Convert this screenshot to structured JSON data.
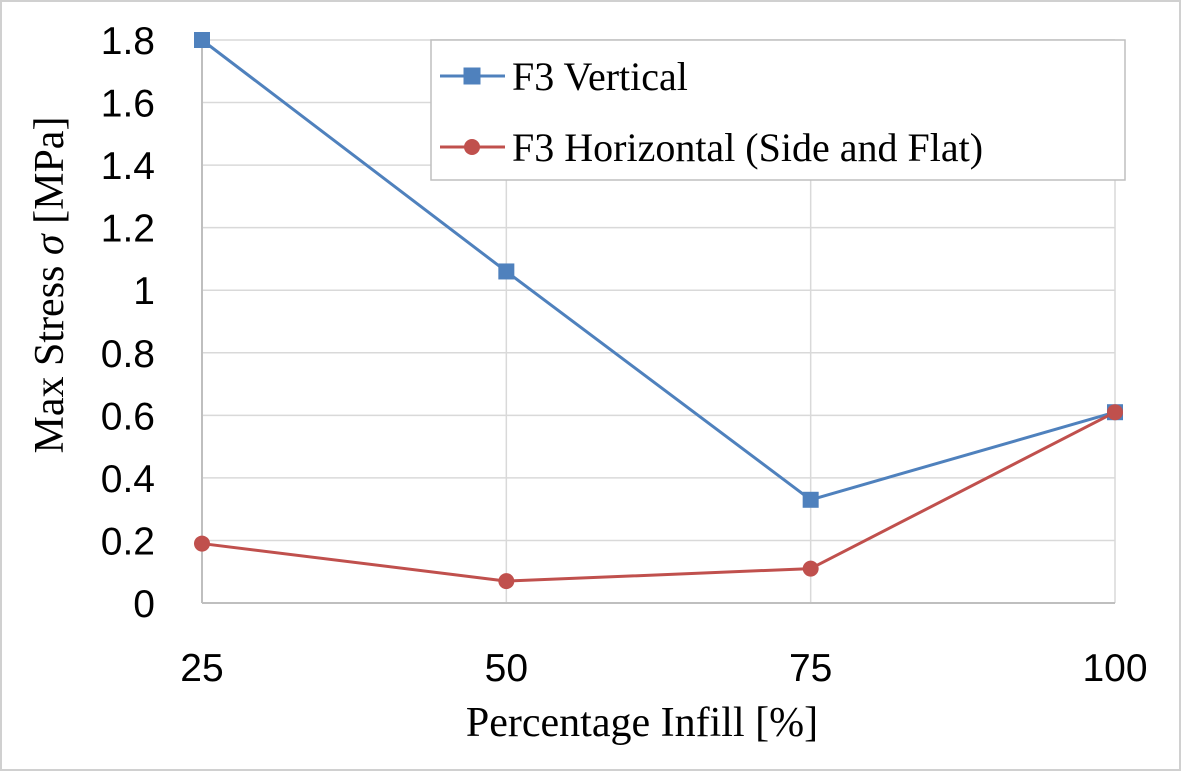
{
  "chart_data": {
    "type": "line",
    "title": "",
    "xlabel": "Percentage  Infill [%]",
    "ylabel": "Max Stress σ [MPa]",
    "ylabel_parts": {
      "before": "Max Stress ",
      "symbol": "σ",
      "after": " [MPa]"
    },
    "categories": [
      "25",
      "50",
      "75",
      "100"
    ],
    "x": [
      25,
      50,
      75,
      100
    ],
    "ylim": [
      0,
      1.8
    ],
    "yticks": [
      0,
      0.2,
      0.4,
      0.6,
      0.8,
      1,
      1.2,
      1.4,
      1.6,
      1.8
    ],
    "ytick_labels": [
      "0",
      "0.2",
      "0.4",
      "0.6",
      "0.8",
      "1",
      "1.2",
      "1.4",
      "1.6",
      "1.8"
    ],
    "grid": true,
    "legend_position": "top-right",
    "series": [
      {
        "name": "F3 Vertical",
        "values": [
          1.8,
          1.06,
          0.33,
          0.61
        ],
        "color": "#4F81BD",
        "marker": "square"
      },
      {
        "name": "F3 Horizontal (Side and Flat)",
        "values": [
          0.19,
          0.07,
          0.11,
          0.61
        ],
        "color": "#C0504D",
        "marker": "circle"
      }
    ]
  }
}
